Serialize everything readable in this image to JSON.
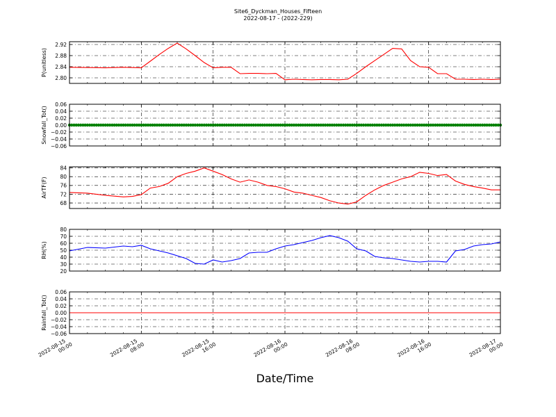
{
  "chart_data": {
    "type": "line",
    "title": "Site6_Dyckman_Houses_Fifteen",
    "subtitle": "2022-08-17 - (2022-229)",
    "xlabel": "Date/Time",
    "x_ticks": [
      [
        "2022-08-15",
        "00:00"
      ],
      [
        "2022-08-15",
        "08:00"
      ],
      [
        "2022-08-15",
        "16:00"
      ],
      [
        "2022-08-16",
        "00:00"
      ],
      [
        "2022-08-16",
        "08:00"
      ],
      [
        "2022-08-16",
        "16:00"
      ],
      [
        "2022-08-17",
        "00:00"
      ]
    ],
    "xlim_hours": [
      0,
      48
    ],
    "grid": true,
    "panels": [
      {
        "ylabel": "P(unitless)",
        "color": "#ff0000",
        "ylim": [
          2.78,
          2.93
        ],
        "yticks": [
          "2.80",
          "2.84",
          "2.88",
          "2.92"
        ],
        "x": [
          0,
          2,
          4,
          6,
          7,
          8,
          9,
          10,
          11,
          12,
          13,
          14,
          15,
          16,
          17,
          18,
          19,
          20,
          21,
          22,
          23,
          24,
          25,
          26,
          27,
          28,
          29,
          30,
          31,
          32,
          33,
          34,
          35,
          36,
          37,
          38,
          39,
          40,
          41,
          42,
          43,
          44,
          45,
          46,
          47,
          48
        ],
        "values": [
          2.838,
          2.837,
          2.836,
          2.838,
          2.837,
          2.836,
          2.86,
          2.884,
          2.906,
          2.925,
          2.904,
          2.88,
          2.855,
          2.836,
          2.838,
          2.838,
          2.815,
          2.816,
          2.816,
          2.815,
          2.816,
          2.793,
          2.795,
          2.794,
          2.793,
          2.794,
          2.794,
          2.793,
          2.795,
          2.816,
          2.84,
          2.862,
          2.884,
          2.906,
          2.904,
          2.862,
          2.84,
          2.838,
          2.815,
          2.815,
          2.795,
          2.795,
          2.794,
          2.795,
          2.794,
          2.795
        ]
      },
      {
        "ylabel": "Snowfall_Tot()",
        "color": "#008000",
        "markers": true,
        "ylim": [
          -0.06,
          0.06
        ],
        "yticks": [
          "0.06",
          "0.04",
          "0.02",
          "0.00",
          "−0.02",
          "−0.04",
          "−0.06"
        ],
        "x": [
          0,
          48
        ],
        "values": [
          0,
          0
        ]
      },
      {
        "ylabel": "AirTF(F)",
        "color": "#ff0000",
        "ylim": [
          65.5,
          84.5
        ],
        "yticks": [
          "84",
          "80",
          "76",
          "72",
          "68"
        ],
        "x": [
          0,
          2,
          4,
          6,
          7,
          8,
          9,
          10,
          11,
          12,
          13,
          14,
          15,
          16,
          17,
          18,
          19,
          20,
          21,
          22,
          23,
          24,
          25,
          26,
          27,
          28,
          29,
          30,
          31,
          32,
          33,
          34,
          35,
          36,
          37,
          38,
          39,
          40,
          41,
          42,
          43,
          44,
          45,
          46,
          47,
          48
        ],
        "values": [
          72.8,
          72.5,
          71.5,
          70.8,
          71.0,
          71.8,
          74.8,
          75.5,
          77.0,
          80.0,
          81.5,
          82.5,
          84.0,
          82.5,
          81.0,
          79.0,
          77.5,
          78.5,
          77.5,
          76.0,
          75.5,
          74.5,
          73.0,
          72.5,
          71.5,
          70.5,
          69.0,
          68.0,
          67.5,
          68.5,
          71.5,
          74.0,
          76.0,
          77.5,
          79.0,
          80.0,
          82.0,
          81.5,
          80.5,
          81.0,
          78.0,
          76.5,
          75.5,
          74.8,
          74.0,
          74.0
        ]
      },
      {
        "ylabel": "RH(%)",
        "color": "#0000ff",
        "ylim": [
          20,
          80
        ],
        "yticks": [
          "80",
          "70",
          "60",
          "50",
          "40",
          "30",
          "20"
        ],
        "x": [
          0,
          2,
          4,
          6,
          7,
          8,
          9,
          10,
          11,
          12,
          13,
          14,
          15,
          16,
          17,
          18,
          19,
          20,
          21,
          22,
          23,
          24,
          25,
          26,
          27,
          28,
          29,
          30,
          31,
          32,
          33,
          34,
          35,
          36,
          37,
          38,
          39,
          40,
          41,
          42,
          43,
          44,
          45,
          46,
          47,
          48
        ],
        "values": [
          49,
          54,
          53,
          56,
          55,
          57,
          52,
          49,
          46,
          42,
          38,
          31,
          30,
          36,
          33,
          35,
          38,
          46,
          47,
          47,
          52,
          56,
          58,
          61,
          64,
          68,
          71,
          68,
          63,
          52,
          49,
          41,
          39,
          38,
          36,
          34,
          33,
          34,
          34,
          33,
          49,
          51,
          56,
          58,
          59,
          62
        ]
      },
      {
        "ylabel": "Rainfall_Tot()",
        "color": "#ff0000",
        "ylim": [
          -0.06,
          0.06
        ],
        "yticks": [
          "0.06",
          "0.04",
          "0.02",
          "0.00",
          "−0.02",
          "−0.04",
          "−0.06"
        ],
        "x": [
          0,
          48
        ],
        "values": [
          0,
          0
        ]
      }
    ]
  }
}
